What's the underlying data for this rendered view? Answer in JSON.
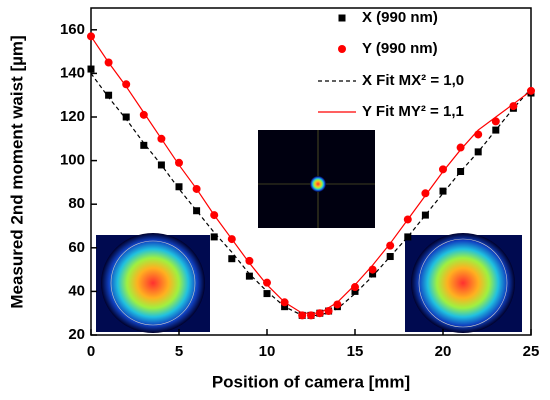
{
  "chart_data": {
    "type": "scatter",
    "x_label": "Position of camera [mm]",
    "y_label": "Measured 2nd moment waist [µm]",
    "xlim": [
      0,
      25
    ],
    "xticks": [
      0,
      5,
      10,
      15,
      20,
      25
    ],
    "ylim": [
      20,
      170
    ],
    "yticks": [
      20,
      40,
      60,
      80,
      100,
      120,
      140,
      160
    ],
    "legend": "upper right",
    "series": [
      {
        "name": "X (990 nm)",
        "color": "#000000",
        "marker": "square",
        "x": [
          0,
          1,
          2,
          3,
          4,
          5,
          6,
          7,
          8,
          9,
          10,
          11,
          12,
          12.5,
          13,
          13.5,
          14,
          15,
          16,
          17,
          18,
          19,
          20,
          21,
          22,
          23,
          24,
          25
        ],
        "values": [
          142,
          130,
          120,
          107,
          98,
          88,
          77,
          65,
          55,
          47,
          39,
          33,
          29,
          29,
          30,
          31,
          33,
          40,
          48,
          56,
          65,
          75,
          86,
          95,
          104,
          114,
          124,
          131
        ]
      },
      {
        "name": "Y (990 nm)",
        "color": "#ff0000",
        "marker": "circle",
        "x": [
          0,
          1,
          2,
          3,
          4,
          5,
          6,
          7,
          8,
          9,
          10,
          11,
          12,
          12.5,
          13,
          13.5,
          14,
          15,
          16,
          17,
          18,
          19,
          20,
          21,
          22,
          23,
          24,
          25
        ],
        "values": [
          157,
          145,
          135,
          121,
          110,
          99,
          87,
          75,
          64,
          54,
          44,
          35,
          29,
          29,
          30,
          31,
          34,
          42,
          50,
          61,
          73,
          85,
          96,
          106,
          112,
          118,
          125,
          132
        ]
      },
      {
        "name": "X Fit MX² = 1,0",
        "color": "#000000",
        "marker": "dashed-line",
        "x": [
          0,
          1,
          2,
          3,
          4,
          5,
          6,
          7,
          8,
          9,
          10,
          11,
          12,
          13,
          14,
          15,
          16,
          17,
          18,
          19,
          20,
          21,
          22,
          23,
          24,
          25
        ],
        "values": [
          140,
          129,
          119,
          108,
          98,
          87,
          77,
          67,
          58,
          48,
          40,
          33,
          29,
          29,
          32,
          39,
          47,
          56,
          65,
          75,
          85,
          95,
          104,
          114,
          124,
          133
        ]
      },
      {
        "name": "Y Fit MY² = 1,1",
        "color": "#ff0000",
        "marker": "line",
        "x": [
          0,
          1,
          2,
          3,
          4,
          5,
          6,
          7,
          8,
          9,
          10,
          11,
          12,
          13,
          14,
          15,
          16,
          17,
          18,
          19,
          20,
          21,
          22,
          23,
          24,
          25
        ],
        "values": [
          157,
          145,
          134,
          122,
          110,
          98,
          87,
          75,
          64,
          53,
          43,
          35,
          30,
          30,
          35,
          43,
          52,
          62,
          73,
          84,
          95,
          105,
          114,
          120,
          126,
          132
        ]
      }
    ]
  }
}
